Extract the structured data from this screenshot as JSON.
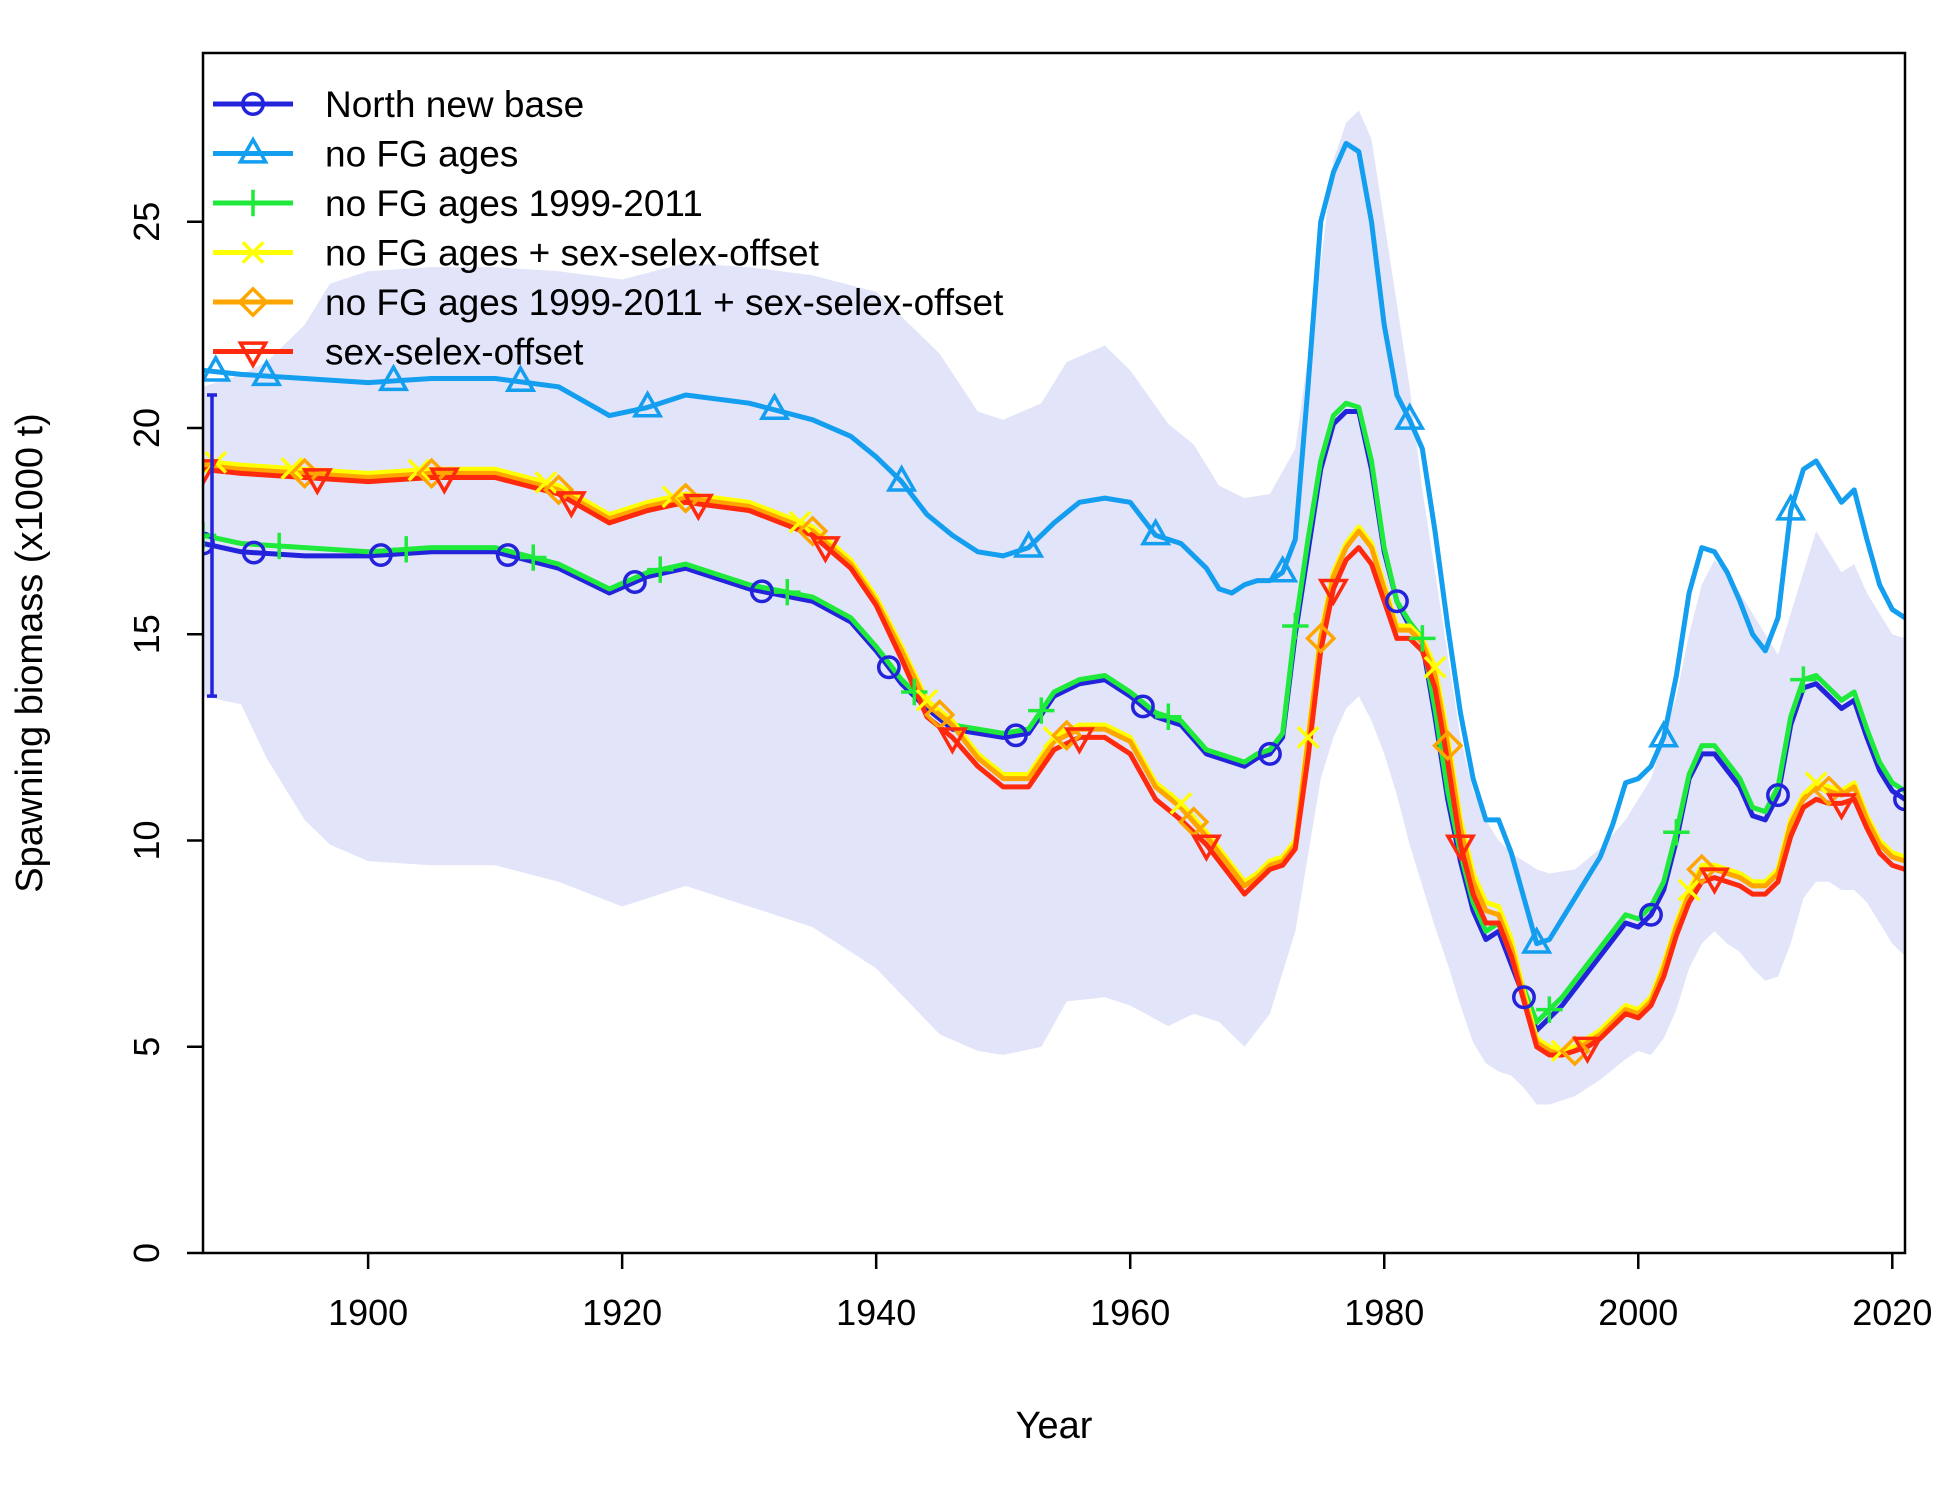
{
  "chart_data": {
    "type": "line",
    "title": "",
    "xlabel": "Year",
    "ylabel": "Spawning biomass (x1000 t)",
    "xlim": [
      1887,
      2021
    ],
    "ylim": [
      0,
      28
    ],
    "x_ticks": [
      1900,
      1920,
      1940,
      1960,
      1980,
      2000,
      2020
    ],
    "x_tick_labels": [
      "1900",
      "1920",
      "1940",
      "1960",
      "1980",
      "2000",
      "2020"
    ],
    "y_ticks": [
      0,
      5,
      10,
      15,
      20,
      25
    ],
    "y_tick_labels": [
      "0",
      "5",
      "10",
      "15",
      "20",
      "25"
    ],
    "legend_position": "top-left",
    "uncertainty_band": {
      "name": "North new base interval",
      "color": "#e2e4fa",
      "x": [
        1887,
        1890,
        1892,
        1895,
        1897,
        1900,
        1905,
        1910,
        1915,
        1920,
        1925,
        1930,
        1935,
        1940,
        1945,
        1948,
        1950,
        1953,
        1955,
        1958,
        1960,
        1963,
        1965,
        1967,
        1969,
        1971,
        1973,
        1975,
        1976,
        1977,
        1978,
        1979,
        1980,
        1981,
        1982,
        1983,
        1984,
        1985,
        1986,
        1987,
        1988,
        1989,
        1990,
        1991,
        1992,
        1993,
        1995,
        1997,
        1999,
        2000,
        2001,
        2002,
        2003,
        2004,
        2005,
        2006,
        2007,
        2008,
        2009,
        2010,
        2011,
        2012,
        2013,
        2014,
        2015,
        2016,
        2017,
        2018,
        2019,
        2020,
        2021
      ],
      "lower": [
        13.5,
        13.3,
        12.0,
        10.5,
        9.9,
        9.5,
        9.4,
        9.4,
        9.0,
        8.4,
        8.9,
        8.4,
        7.9,
        6.9,
        5.3,
        4.9,
        4.8,
        5.0,
        6.1,
        6.2,
        6.0,
        5.5,
        5.8,
        5.6,
        5.0,
        5.8,
        7.8,
        11.5,
        12.5,
        13.2,
        13.5,
        12.9,
        12.1,
        11.1,
        9.9,
        8.9,
        7.9,
        7.0,
        6.0,
        5.1,
        4.6,
        4.4,
        4.3,
        4.0,
        3.6,
        3.6,
        3.8,
        4.2,
        4.7,
        4.9,
        4.8,
        5.2,
        5.9,
        6.9,
        7.5,
        7.8,
        7.5,
        7.3,
        6.9,
        6.6,
        6.7,
        7.5,
        8.6,
        9.0,
        9.0,
        8.8,
        8.8,
        8.5,
        8.0,
        7.5,
        7.2
      ],
      "upper": [
        21.0,
        21.3,
        21.6,
        22.5,
        23.5,
        23.8,
        23.9,
        23.9,
        23.8,
        23.6,
        24.0,
        23.9,
        23.7,
        23.3,
        21.8,
        20.4,
        20.2,
        20.6,
        21.6,
        22.0,
        21.4,
        20.1,
        19.6,
        18.6,
        18.3,
        18.4,
        19.5,
        24.0,
        26.5,
        27.4,
        27.7,
        27.0,
        25.0,
        23.0,
        21.0,
        18.5,
        16.5,
        14.5,
        12.5,
        11.2,
        10.5,
        10.0,
        9.7,
        9.5,
        9.3,
        9.2,
        9.3,
        9.8,
        10.5,
        11.0,
        11.5,
        12.5,
        13.5,
        15.0,
        16.2,
        16.8,
        16.5,
        16.0,
        15.5,
        15.0,
        14.5,
        15.5,
        16.5,
        17.5,
        17.0,
        16.5,
        16.7,
        16.0,
        15.5,
        15.0,
        14.9
      ]
    },
    "interval_bar_1887": {
      "x": 1887,
      "low": 13.5,
      "high": 20.8
    },
    "x": [
      1887,
      1890,
      1895,
      1900,
      1905,
      1910,
      1915,
      1919,
      1922,
      1925,
      1930,
      1935,
      1938,
      1940,
      1942,
      1944,
      1946,
      1948,
      1950,
      1952,
      1954,
      1956,
      1958,
      1960,
      1962,
      1964,
      1966,
      1967,
      1968,
      1969,
      1970,
      1971,
      1972,
      1973,
      1974,
      1975,
      1976,
      1977,
      1978,
      1979,
      1980,
      1981,
      1982,
      1983,
      1984,
      1985,
      1986,
      1987,
      1988,
      1989,
      1990,
      1991,
      1992,
      1993,
      1994,
      1995,
      1996,
      1997,
      1998,
      1999,
      2000,
      2001,
      2002,
      2003,
      2004,
      2005,
      2006,
      2007,
      2008,
      2009,
      2010,
      2011,
      2012,
      2013,
      2014,
      2015,
      2016,
      2017,
      2018,
      2019,
      2020,
      2021
    ],
    "series": [
      {
        "name": "North new base",
        "color": "#2323dc",
        "marker": "circle",
        "values": [
          17.2,
          17.0,
          16.9,
          16.9,
          17.0,
          17.0,
          16.6,
          16.0,
          16.4,
          16.6,
          16.1,
          15.8,
          15.3,
          14.6,
          13.8,
          13.2,
          12.7,
          12.6,
          12.5,
          12.6,
          13.5,
          13.8,
          13.9,
          13.5,
          13.0,
          12.8,
          12.1,
          12.0,
          11.9,
          11.8,
          12.0,
          12.1,
          12.5,
          15.0,
          17.0,
          19.0,
          20.1,
          20.4,
          20.4,
          19.0,
          17.0,
          15.8,
          15.2,
          14.8,
          13.0,
          11.0,
          9.5,
          8.3,
          7.6,
          7.8,
          7.0,
          6.2,
          5.4,
          5.7,
          6.0,
          6.4,
          6.8,
          7.2,
          7.6,
          8.0,
          7.9,
          8.2,
          8.8,
          10.0,
          11.5,
          12.1,
          12.1,
          11.7,
          11.3,
          10.6,
          10.5,
          11.1,
          12.8,
          13.7,
          13.8,
          13.5,
          13.2,
          13.4,
          12.5,
          11.7,
          11.2,
          11.0
        ],
        "marker_x": [
          1887,
          1891,
          1901,
          1911,
          1921,
          1931,
          1941,
          1951,
          1961,
          1971,
          1981,
          1991,
          2001,
          2011,
          2021
        ]
      },
      {
        "name": "no FG ages",
        "color": "#139eef",
        "marker": "triangle-up",
        "values": [
          21.4,
          21.3,
          21.2,
          21.1,
          21.2,
          21.2,
          21.0,
          20.3,
          20.5,
          20.8,
          20.6,
          20.2,
          19.8,
          19.3,
          18.7,
          17.9,
          17.4,
          17.0,
          16.9,
          17.1,
          17.7,
          18.2,
          18.3,
          18.2,
          17.4,
          17.2,
          16.6,
          16.1,
          16.0,
          16.2,
          16.3,
          16.3,
          16.5,
          17.3,
          21.0,
          25.0,
          26.2,
          26.9,
          26.7,
          25.0,
          22.5,
          20.8,
          20.2,
          19.5,
          17.5,
          15.2,
          13.1,
          11.5,
          10.5,
          10.5,
          9.7,
          8.6,
          7.5,
          7.6,
          8.1,
          8.6,
          9.1,
          9.6,
          10.4,
          11.4,
          11.5,
          11.8,
          12.5,
          14.0,
          16.0,
          17.1,
          17.0,
          16.5,
          15.8,
          15.0,
          14.6,
          15.4,
          18.0,
          19.0,
          19.2,
          18.7,
          18.2,
          18.5,
          17.3,
          16.2,
          15.6,
          15.4
        ],
        "marker_x": [
          1888,
          1892,
          1902,
          1912,
          1922,
          1932,
          1942,
          1952,
          1962,
          1972,
          1982,
          1992,
          2002,
          2012
        ]
      },
      {
        "name": "no FG ages 1999-2011",
        "color": "#1fea3b",
        "marker": "plus",
        "values": [
          17.4,
          17.2,
          17.1,
          17.0,
          17.1,
          17.1,
          16.7,
          16.1,
          16.5,
          16.7,
          16.2,
          15.9,
          15.4,
          14.7,
          13.9,
          13.3,
          12.8,
          12.7,
          12.6,
          12.7,
          13.6,
          13.9,
          14.0,
          13.6,
          13.1,
          12.9,
          12.2,
          12.1,
          12.0,
          11.9,
          12.1,
          12.2,
          12.6,
          15.2,
          17.3,
          19.2,
          20.3,
          20.6,
          20.5,
          19.2,
          17.1,
          15.8,
          15.3,
          14.9,
          13.2,
          11.2,
          9.7,
          8.5,
          7.8,
          8.0,
          7.2,
          6.4,
          5.6,
          5.9,
          6.2,
          6.6,
          7.0,
          7.4,
          7.8,
          8.2,
          8.1,
          8.4,
          9.0,
          10.2,
          11.6,
          12.3,
          12.3,
          11.9,
          11.5,
          10.8,
          10.7,
          11.3,
          13.0,
          13.9,
          14.0,
          13.7,
          13.4,
          13.6,
          12.7,
          11.9,
          11.4,
          11.2
        ],
        "marker_x": [
          1887,
          1893,
          1903,
          1913,
          1923,
          1933,
          1943,
          1953,
          1963,
          1973,
          1983,
          1993,
          2003,
          2013
        ]
      },
      {
        "name": "no FG ages + sex-selex-offset",
        "color": "#ffff00",
        "marker": "x",
        "values": [
          19.2,
          19.1,
          19.0,
          18.9,
          19.0,
          19.0,
          18.6,
          17.9,
          18.2,
          18.4,
          18.2,
          17.6,
          16.8,
          15.9,
          14.7,
          13.4,
          12.9,
          12.1,
          11.6,
          11.6,
          12.5,
          12.8,
          12.8,
          12.5,
          11.4,
          10.9,
          10.2,
          9.8,
          9.4,
          9.0,
          9.2,
          9.5,
          9.6,
          10.0,
          12.5,
          15.0,
          16.5,
          17.2,
          17.6,
          17.2,
          16.2,
          15.2,
          15.2,
          14.9,
          14.2,
          12.5,
          10.5,
          9.2,
          8.5,
          8.4,
          7.6,
          6.3,
          5.2,
          5.0,
          4.9,
          5.0,
          5.2,
          5.4,
          5.7,
          6.0,
          5.9,
          6.2,
          7.0,
          8.0,
          8.8,
          9.4,
          9.4,
          9.3,
          9.2,
          9.0,
          9.0,
          9.3,
          10.5,
          11.1,
          11.4,
          11.3,
          11.2,
          11.4,
          10.6,
          10.0,
          9.7,
          9.6
        ],
        "marker_x": [
          1888,
          1894,
          1904,
          1914,
          1924,
          1934,
          1944,
          1954,
          1964,
          1974,
          1984,
          1994,
          2004,
          2014
        ]
      },
      {
        "name": "no FG ages 1999-2011 + sex-selex-offset",
        "color": "#ffa500",
        "marker": "diamond",
        "values": [
          19.1,
          19.0,
          18.9,
          18.8,
          18.9,
          18.9,
          18.5,
          17.8,
          18.1,
          18.3,
          18.1,
          17.5,
          16.7,
          15.8,
          14.6,
          13.3,
          12.8,
          12.0,
          11.5,
          11.5,
          12.4,
          12.7,
          12.7,
          12.4,
          11.3,
          10.8,
          10.1,
          9.7,
          9.3,
          8.9,
          9.1,
          9.4,
          9.5,
          9.9,
          12.4,
          14.9,
          16.4,
          17.1,
          17.5,
          17.1,
          16.1,
          15.1,
          15.1,
          14.8,
          14.0,
          12.3,
          10.3,
          9.0,
          8.3,
          8.2,
          7.4,
          6.2,
          5.1,
          4.9,
          4.8,
          4.9,
          5.1,
          5.3,
          5.6,
          5.9,
          5.8,
          6.1,
          6.9,
          7.9,
          8.7,
          9.3,
          9.3,
          9.2,
          9.1,
          8.9,
          8.9,
          9.2,
          10.4,
          11.0,
          11.3,
          11.2,
          11.1,
          11.3,
          10.5,
          9.9,
          9.6,
          9.5
        ],
        "marker_x": [
          1895,
          1905,
          1915,
          1925,
          1935,
          1945,
          1955,
          1965,
          1975,
          1985,
          1995,
          2005,
          2015
        ]
      },
      {
        "name": "sex-selex-offset",
        "color": "#ff2a0d",
        "marker": "triangle-down",
        "values": [
          19.0,
          18.9,
          18.8,
          18.7,
          18.8,
          18.8,
          18.4,
          17.7,
          18.0,
          18.2,
          18.0,
          17.4,
          16.6,
          15.7,
          14.4,
          13.0,
          12.5,
          11.8,
          11.3,
          11.3,
          12.2,
          12.5,
          12.5,
          12.1,
          11.0,
          10.5,
          9.9,
          9.5,
          9.1,
          8.7,
          9.0,
          9.3,
          9.4,
          9.8,
          12.0,
          14.6,
          16.1,
          16.8,
          17.1,
          16.7,
          15.8,
          14.9,
          14.9,
          14.6,
          13.7,
          11.9,
          9.9,
          8.7,
          8.0,
          8.0,
          7.2,
          6.1,
          5.0,
          4.8,
          4.8,
          4.9,
          5.0,
          5.2,
          5.5,
          5.8,
          5.7,
          6.0,
          6.7,
          7.7,
          8.5,
          9.0,
          9.1,
          9.0,
          8.9,
          8.7,
          8.7,
          9.0,
          10.1,
          10.8,
          11.0,
          10.9,
          10.9,
          11.0,
          10.3,
          9.7,
          9.4,
          9.3
        ],
        "marker_x": [
          1887,
          1896,
          1906,
          1916,
          1926,
          1936,
          1946,
          1956,
          1966,
          1976,
          1986,
          1996,
          2006,
          2016
        ]
      }
    ]
  }
}
